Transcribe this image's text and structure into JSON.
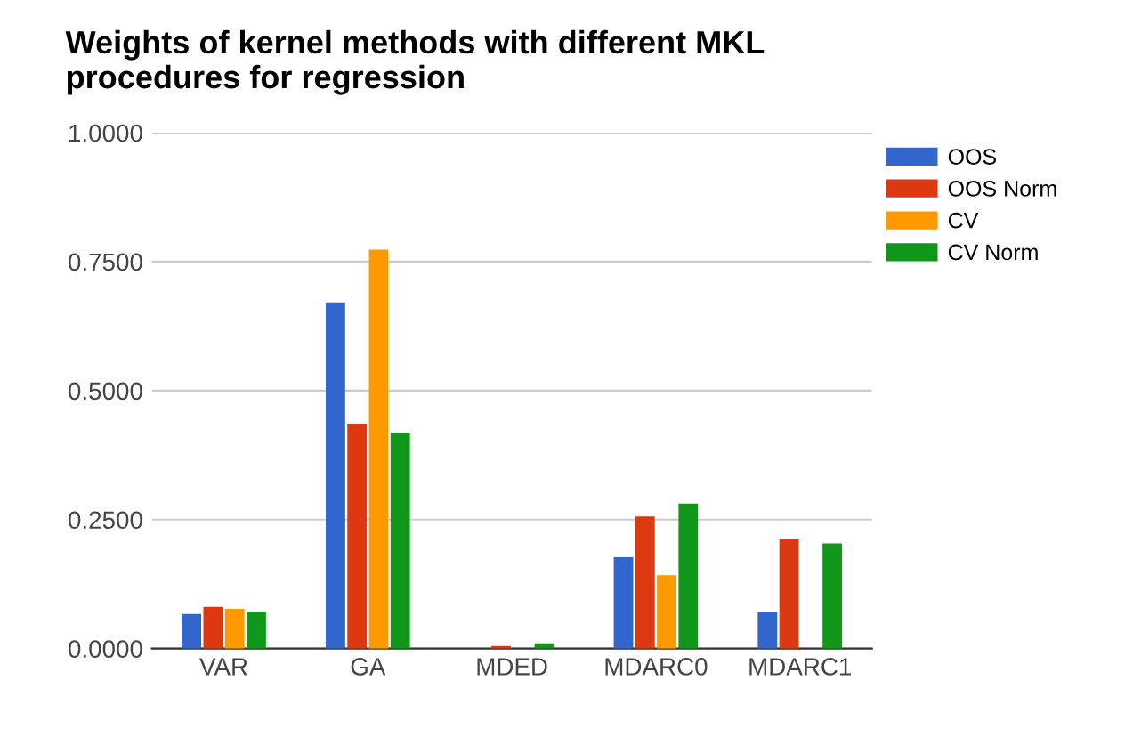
{
  "chart_data": {
    "type": "bar",
    "title": "Weights of kernel methods with different MKL\nprocedures for regression",
    "categories": [
      "VAR",
      "GA",
      "MDED",
      "MDARC0",
      "MDARC1"
    ],
    "series": [
      {
        "name": "OOS",
        "color": "#3366cc",
        "values": [
          0.067,
          0.671,
          0,
          0.177,
          0.07
        ]
      },
      {
        "name": "OOS Norm",
        "color": "#dc3912",
        "values": [
          0.081,
          0.436,
          0.005,
          0.256,
          0.213
        ]
      },
      {
        "name": "CV",
        "color": "#ff9900",
        "values": [
          0.077,
          0.773,
          0,
          0.142,
          0
        ]
      },
      {
        "name": "CV Norm",
        "color": "#109618",
        "values": [
          0.07,
          0.418,
          0.01,
          0.281,
          0.204
        ]
      }
    ],
    "ylim": [
      0,
      1
    ],
    "yticks": [
      {
        "value": 0,
        "label": "0.0000"
      },
      {
        "value": 0.25,
        "label": "0.2500"
      },
      {
        "value": 0.5,
        "label": "0.5000"
      },
      {
        "value": 0.75,
        "label": "0.7500"
      },
      {
        "value": 1,
        "label": "1.0000"
      }
    ],
    "grid": "y",
    "legend": "top right"
  }
}
